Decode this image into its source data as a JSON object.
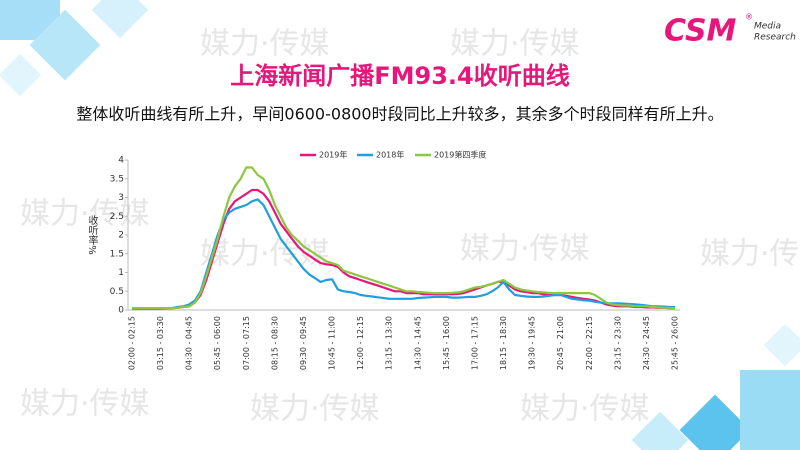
{
  "logo": {
    "text": "CSM",
    "mark": "®",
    "sub": [
      "Media",
      "Research"
    ]
  },
  "watermark": "媒力·传媒",
  "title": "上海新闻广播FM93.4收听曲线",
  "subtitle": "整体收听曲线有所上升，早间0600-0800时段同比上升较多，其余多个时段同样有所上升。",
  "chart_data": {
    "type": "line",
    "y_label": "收听率%",
    "categories": [
      "02:00 - 02:15",
      null,
      null,
      null,
      null,
      "03:15 - 03:30",
      null,
      null,
      null,
      null,
      "04:30 - 04:45",
      null,
      null,
      null,
      null,
      "05:45 - 06:00",
      null,
      null,
      null,
      null,
      "07:00 - 07:15",
      null,
      null,
      null,
      null,
      "08:15 - 08:30",
      null,
      null,
      null,
      null,
      "09:30 - 09:45",
      null,
      null,
      null,
      null,
      "10:45 - 11:00",
      null,
      null,
      null,
      null,
      "12:00 - 12:15",
      null,
      null,
      null,
      null,
      "13:15 - 13:30",
      null,
      null,
      null,
      null,
      "14:30 - 14:45",
      null,
      null,
      null,
      null,
      "15:45 - 16:00",
      null,
      null,
      null,
      null,
      "17:00 - 17:15",
      null,
      null,
      null,
      null,
      "18:15 - 18:30",
      null,
      null,
      null,
      null,
      "19:30 - 19:45",
      null,
      null,
      null,
      null,
      "20:45 - 21:00",
      null,
      null,
      null,
      null,
      "22:00 - 22:15",
      null,
      null,
      null,
      null,
      "23:15 - 23:30",
      null,
      null,
      null,
      null,
      "24:30 - 24:45",
      null,
      null,
      null,
      null,
      "25:45 - 26:00"
    ],
    "series": [
      {
        "name": "2019年",
        "color": "#e5177b",
        "values": [
          0.05,
          0.05,
          0.05,
          0.05,
          0.05,
          0.05,
          0.05,
          0.05,
          0.06,
          0.08,
          0.1,
          0.2,
          0.4,
          0.8,
          1.3,
          1.8,
          2.3,
          2.7,
          2.9,
          3.0,
          3.1,
          3.2,
          3.2,
          3.1,
          2.9,
          2.6,
          2.3,
          2.1,
          1.9,
          1.7,
          1.55,
          1.45,
          1.35,
          1.25,
          1.22,
          1.2,
          1.15,
          1.0,
          0.9,
          0.85,
          0.8,
          0.75,
          0.7,
          0.65,
          0.6,
          0.55,
          0.5,
          0.5,
          0.45,
          0.45,
          0.45,
          0.42,
          0.42,
          0.42,
          0.42,
          0.42,
          0.42,
          0.43,
          0.45,
          0.5,
          0.55,
          0.6,
          0.65,
          0.7,
          0.75,
          0.75,
          0.65,
          0.55,
          0.5,
          0.48,
          0.45,
          0.45,
          0.42,
          0.4,
          0.4,
          0.4,
          0.38,
          0.35,
          0.32,
          0.3,
          0.28,
          0.25,
          0.2,
          0.15,
          0.12,
          0.1,
          0.1,
          0.1,
          0.08,
          0.08,
          0.07,
          0.07,
          0.06,
          0.06,
          0.05,
          0.05
        ]
      },
      {
        "name": "2018年",
        "color": "#1f9ee0",
        "values": [
          0.03,
          0.03,
          0.03,
          0.03,
          0.03,
          0.03,
          0.04,
          0.05,
          0.08,
          0.1,
          0.15,
          0.25,
          0.5,
          1.0,
          1.5,
          2.0,
          2.4,
          2.6,
          2.7,
          2.75,
          2.8,
          2.9,
          2.95,
          2.8,
          2.5,
          2.2,
          1.9,
          1.7,
          1.5,
          1.3,
          1.1,
          0.95,
          0.85,
          0.75,
          0.8,
          0.82,
          0.55,
          0.5,
          0.48,
          0.45,
          0.4,
          0.38,
          0.36,
          0.34,
          0.32,
          0.3,
          0.3,
          0.3,
          0.3,
          0.3,
          0.32,
          0.33,
          0.34,
          0.35,
          0.35,
          0.35,
          0.33,
          0.33,
          0.34,
          0.35,
          0.35,
          0.38,
          0.42,
          0.5,
          0.6,
          0.75,
          0.55,
          0.4,
          0.38,
          0.36,
          0.35,
          0.35,
          0.36,
          0.38,
          0.4,
          0.4,
          0.35,
          0.3,
          0.28,
          0.26,
          0.25,
          0.22,
          0.2,
          0.18,
          0.18,
          0.18,
          0.17,
          0.16,
          0.15,
          0.14,
          0.12,
          0.1,
          0.1,
          0.09,
          0.08,
          0.08
        ]
      },
      {
        "name": "2019第四季度",
        "color": "#8dc63f",
        "values": [
          0.05,
          0.05,
          0.05,
          0.05,
          0.05,
          0.05,
          0.05,
          0.05,
          0.06,
          0.08,
          0.1,
          0.2,
          0.45,
          0.9,
          1.4,
          1.9,
          2.5,
          3.0,
          3.3,
          3.5,
          3.8,
          3.8,
          3.6,
          3.5,
          3.2,
          2.8,
          2.5,
          2.2,
          2.0,
          1.85,
          1.7,
          1.6,
          1.5,
          1.4,
          1.3,
          1.25,
          1.2,
          1.05,
          1.0,
          0.95,
          0.9,
          0.85,
          0.8,
          0.75,
          0.7,
          0.65,
          0.6,
          0.55,
          0.5,
          0.5,
          0.48,
          0.47,
          0.46,
          0.45,
          0.45,
          0.45,
          0.46,
          0.47,
          0.5,
          0.55,
          0.6,
          0.62,
          0.65,
          0.7,
          0.75,
          0.8,
          0.7,
          0.6,
          0.55,
          0.52,
          0.5,
          0.48,
          0.47,
          0.46,
          0.45,
          0.45,
          0.45,
          0.45,
          0.45,
          0.45,
          0.45,
          0.4,
          0.3,
          0.2,
          0.15,
          0.13,
          0.12,
          0.12,
          0.1,
          0.1,
          0.1,
          0.08,
          0.07,
          0.06,
          0.06,
          0.05
        ]
      }
    ],
    "ylim": [
      0,
      4
    ],
    "yticks": [
      0,
      0.5,
      1,
      1.5,
      2,
      2.5,
      3,
      3.5,
      4
    ],
    "grid": false,
    "legend": "top"
  }
}
